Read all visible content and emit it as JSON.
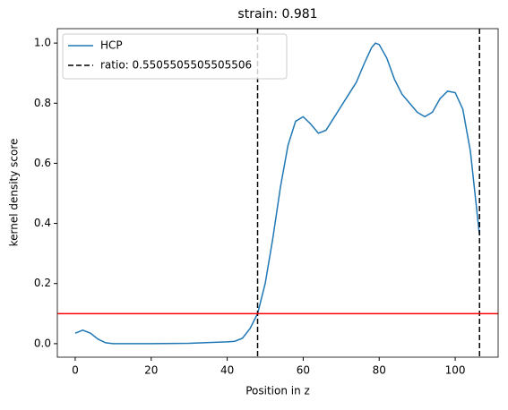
{
  "chart_data": {
    "type": "line",
    "title": "strain: 0.981",
    "xlabel": "Position in z",
    "ylabel": "kernel density score",
    "x": [
      0,
      2,
      4,
      6,
      8,
      10,
      20,
      30,
      36,
      40,
      42,
      44,
      46,
      48,
      50,
      52,
      54,
      56,
      58,
      60,
      62,
      64,
      66,
      68,
      70,
      72,
      74,
      76,
      78,
      79,
      80,
      82,
      84,
      86,
      88,
      90,
      92,
      94,
      96,
      98,
      100,
      102,
      104,
      106.4
    ],
    "series": [
      {
        "name": "HCP",
        "color": "#1f77b4",
        "values": [
          0.035,
          0.045,
          0.035,
          0.015,
          0.003,
          0.0,
          0.0,
          0.001,
          0.004,
          0.006,
          0.008,
          0.018,
          0.05,
          0.1,
          0.2,
          0.35,
          0.52,
          0.66,
          0.74,
          0.755,
          0.73,
          0.7,
          0.71,
          0.75,
          0.79,
          0.83,
          0.87,
          0.93,
          0.985,
          1.0,
          0.995,
          0.95,
          0.88,
          0.83,
          0.8,
          0.77,
          0.755,
          0.77,
          0.815,
          0.84,
          0.835,
          0.78,
          0.64,
          0.36
        ]
      }
    ],
    "vlines": {
      "name": "ratio: 0.5505505505505506",
      "color": "#000000",
      "values": [
        48,
        106.4
      ]
    },
    "hline": {
      "value": 0.1,
      "color": "#ff0000"
    },
    "xlim": [
      -4.7,
      111.3
    ],
    "xticks": [
      0,
      20,
      40,
      60,
      80,
      100
    ],
    "ylim": [
      -0.045,
      1.048
    ],
    "yticks": [
      {
        "value": 0,
        "label": "0.0"
      },
      {
        "value": 0.2,
        "label": "0.2"
      },
      {
        "value": 0.4,
        "label": "0.4"
      },
      {
        "value": 0.6,
        "label": "0.6"
      },
      {
        "value": 0.8,
        "label": "0.8"
      },
      {
        "value": 1.0,
        "label": "1.0"
      }
    ],
    "legend": "upper left"
  }
}
